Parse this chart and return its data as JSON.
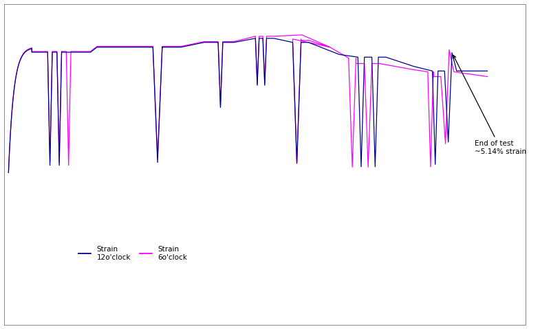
{
  "line1_color": "#00008B",
  "line2_color": "#FF00FF",
  "line1_label": "Strain\n12o'clock",
  "line2_label": "Strain\n6o'clock",
  "annotation_text": "End of test\n~5.14% strain",
  "background_color": "#ffffff",
  "plot_bg_color": "#ffffff",
  "figsize": [
    7.85,
    4.79
  ],
  "dpi": 100
}
